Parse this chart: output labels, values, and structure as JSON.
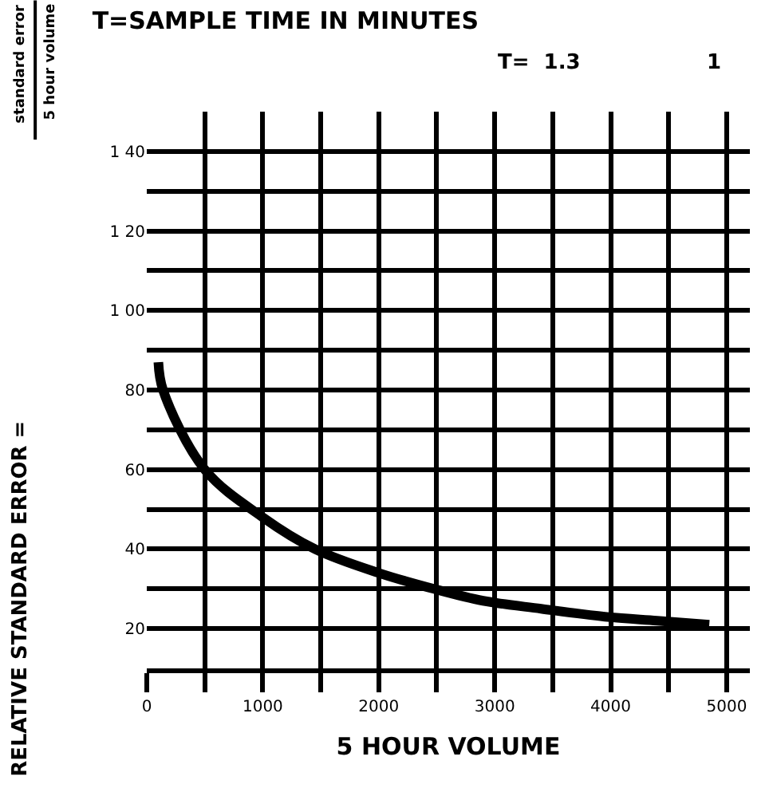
{
  "chart_data": {
    "type": "line",
    "title": "T=SAMPLE TIME IN MINUTES",
    "xlabel": "5 HOUR VOLUME",
    "ylabel": "RELATIVE STANDARD ERROR =",
    "annotations": [
      "standard error",
      "5 hour volume",
      "T=  1.3",
      "1"
    ],
    "x": [
      100,
      140,
      500,
      1000,
      1450,
      2000,
      2475,
      2900,
      3400,
      3950,
      4400,
      4850
    ],
    "series": [
      {
        "color": "#000000",
        "values": [
          87,
          80,
          60,
          48,
          40,
          34,
          30,
          27,
          25,
          23,
          22,
          21
        ]
      }
    ],
    "xlim": [
      0,
      5200
    ],
    "xticks": [
      0,
      {
        "value": 500,
        "label": null
      },
      1000,
      {
        "value": 1500,
        "label": null
      },
      2000,
      {
        "value": 2500,
        "label": null
      },
      3000,
      {
        "value": 3500,
        "label": null
      },
      4000,
      {
        "value": 4500,
        "label": null
      },
      5000
    ],
    "ylim": [
      10,
      150
    ],
    "yticks": [
      20,
      {
        "value": 30,
        "label": null
      },
      40,
      {
        "value": 50,
        "label": null
      },
      60,
      {
        "value": 70,
        "label": null
      },
      80,
      {
        "value": 90,
        "label": null
      },
      {
        "value": 100,
        "label": "1 00"
      },
      {
        "value": 110,
        "label": null
      },
      {
        "value": 120,
        "label": "1 20"
      },
      {
        "value": 130,
        "label": null
      },
      {
        "value": 140,
        "label": "1 40"
      }
    ],
    "grid": true,
    "legend": false,
    "marker": "none",
    "line_style": "solid"
  }
}
